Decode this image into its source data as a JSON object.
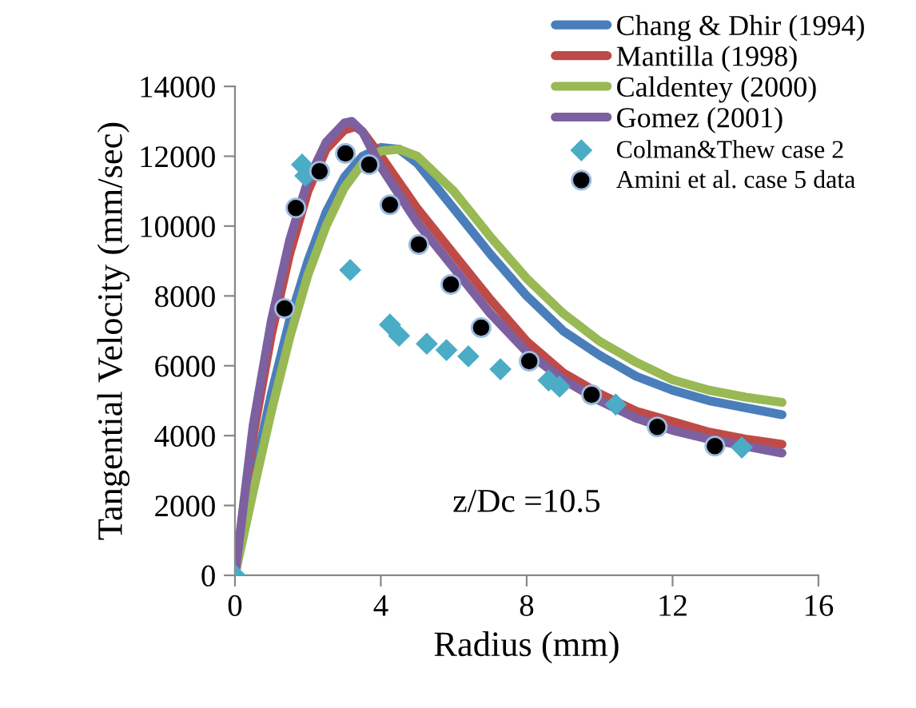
{
  "chart_data": {
    "type": "line",
    "xlabel": "Radius (mm)",
    "ylabel": "Tangential Velocity (mm/sec)",
    "xlim": [
      0,
      16
    ],
    "xticks": [
      0,
      4,
      8,
      12,
      16
    ],
    "ylim": [
      0,
      14000
    ],
    "yticks": [
      0,
      2000,
      4000,
      6000,
      8000,
      10000,
      12000,
      14000
    ],
    "grid": false,
    "legend": "top right",
    "annotations": [
      "z/Dc =10.5"
    ],
    "series": [
      {
        "name": "Chang & Dhir (1994)",
        "color": "#4a7ebb",
        "x": [
          0,
          0.5,
          1,
          1.5,
          2,
          2.5,
          3,
          3.5,
          4,
          4.5,
          5,
          6,
          7,
          8,
          9,
          10,
          11,
          12,
          13,
          14,
          15
        ],
        "values": [
          0,
          2800,
          5200,
          7300,
          9000,
          10400,
          11400,
          12000,
          12250,
          12200,
          11800,
          10500,
          9200,
          8000,
          7000,
          6300,
          5700,
          5300,
          5000,
          4800,
          4600
        ]
      },
      {
        "name": "Mantilla (1998)",
        "color": "#be4b48",
        "x": [
          0,
          0.5,
          1,
          1.5,
          2,
          2.5,
          3,
          3.3,
          3.5,
          4,
          5,
          6,
          7,
          8,
          9,
          10,
          11,
          12,
          13,
          14,
          15
        ],
        "values": [
          0,
          4000,
          6900,
          9200,
          11000,
          12200,
          12750,
          12850,
          12700,
          12000,
          10500,
          9200,
          7900,
          6700,
          5800,
          5200,
          4700,
          4400,
          4100,
          3900,
          3750
        ]
      },
      {
        "name": "Caldentey (2000)",
        "color": "#98b954",
        "x": [
          0,
          0.5,
          1,
          1.5,
          2,
          2.5,
          3,
          3.5,
          4,
          4.5,
          5,
          6,
          7,
          8,
          9,
          10,
          11,
          12,
          13,
          14,
          15
        ],
        "values": [
          0,
          2400,
          4700,
          6800,
          8600,
          10000,
          11100,
          11800,
          12150,
          12200,
          12000,
          11000,
          9700,
          8500,
          7500,
          6700,
          6100,
          5600,
          5300,
          5100,
          4950
        ]
      },
      {
        "name": "Gomez (2001)",
        "color": "#7d60a0",
        "x": [
          0,
          0.5,
          1,
          1.5,
          2,
          2.5,
          3,
          3.2,
          3.5,
          4,
          5,
          6,
          7,
          8,
          9,
          10,
          11,
          12,
          13,
          14,
          15
        ],
        "values": [
          0,
          4300,
          7300,
          9600,
          11300,
          12400,
          12950,
          13000,
          12700,
          11700,
          10100,
          8800,
          7500,
          6400,
          5600,
          5000,
          4500,
          4150,
          3900,
          3700,
          3500
        ]
      },
      {
        "name": "Colman&Thew case 2",
        "type": "scatter",
        "marker": "diamond",
        "color": "#4bacc6",
        "x": [
          0,
          1.84,
          1.93,
          3.16,
          4.25,
          4.5,
          5.26,
          5.8,
          6.4,
          7.28,
          8.6,
          8.9,
          10.44,
          13.9
        ],
        "values": [
          0,
          11760,
          11440,
          8740,
          7180,
          6860,
          6630,
          6450,
          6270,
          5900,
          5580,
          5400,
          4890,
          3660
        ]
      },
      {
        "name": "Amini et al. case 5 data",
        "type": "scatter",
        "marker": "circle",
        "color": "#000000",
        "x": [
          1.36,
          1.67,
          2.32,
          3.03,
          3.68,
          4.25,
          5.04,
          5.92,
          6.75,
          8.07,
          9.78,
          11.58,
          13.16
        ],
        "values": [
          7640,
          10520,
          11570,
          12080,
          11760,
          10610,
          9470,
          8330,
          7090,
          6130,
          5170,
          4250,
          3700
        ]
      }
    ]
  }
}
